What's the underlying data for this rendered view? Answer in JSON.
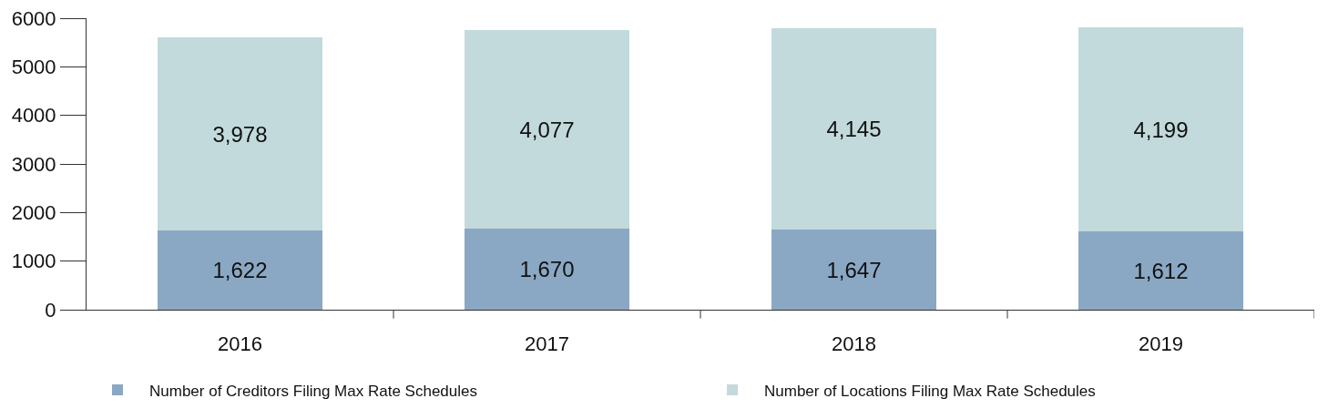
{
  "chart_data": {
    "type": "bar",
    "stacked": true,
    "categories": [
      "2016",
      "2017",
      "2018",
      "2019"
    ],
    "series": [
      {
        "name": "Number of Creditors Filing Max Rate Schedules",
        "color": "#8aa8c4",
        "values": [
          1622,
          1670,
          1647,
          1612
        ],
        "value_labels": [
          "1,622",
          "1,670",
          "1,647",
          "1,612"
        ]
      },
      {
        "name": "Number of Locations Filing Max Rate Schedules",
        "color": "#c2dadb",
        "values": [
          3978,
          4077,
          4145,
          4199
        ],
        "value_labels": [
          "3,978",
          "4,077",
          "4,145",
          "4,199"
        ]
      }
    ],
    "ylim": [
      0,
      6000
    ],
    "yticks": [
      0,
      1000,
      2000,
      3000,
      4000,
      5000,
      6000
    ],
    "grid": false,
    "legend": "bottom"
  }
}
